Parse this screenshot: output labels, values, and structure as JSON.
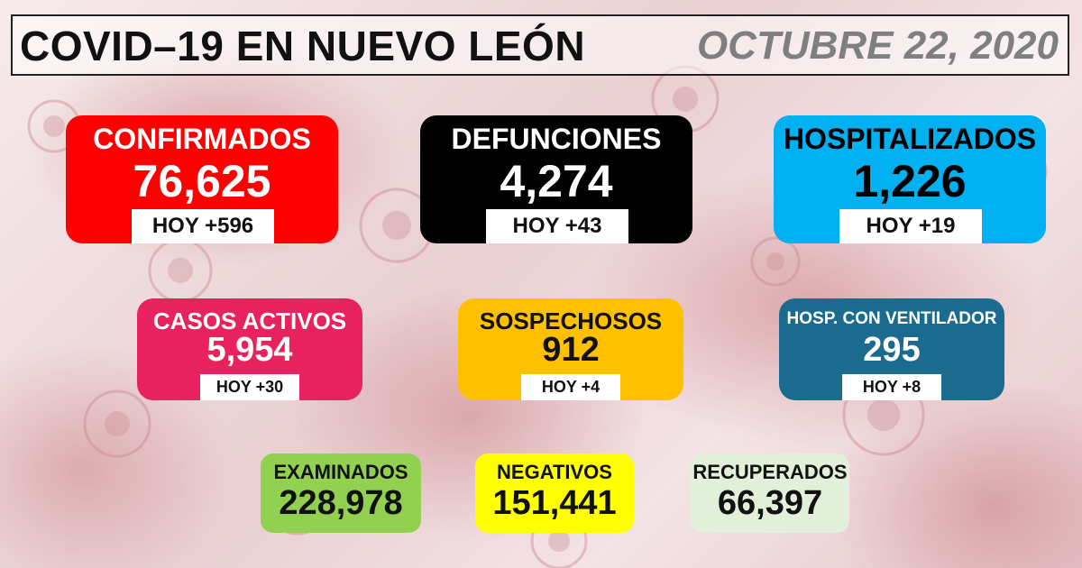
{
  "header": {
    "title": "COVID–19 EN NUEVO LEÓN",
    "date": "OCTUBRE 22, 2020"
  },
  "cards": {
    "confirmados": {
      "label": "CONFIRMADOS",
      "value": "76,625",
      "today": "HOY +596",
      "color": "#ff0000"
    },
    "defunciones": {
      "label": "DEFUNCIONES",
      "value": "4,274",
      "today": "HOY +43",
      "color": "#000000"
    },
    "hospitalizados": {
      "label": "HOSPITALIZADOS",
      "value": "1,226",
      "today": "HOY +19",
      "color": "#00b0f0"
    },
    "casos_activos": {
      "label": "CASOS ACTIVOS",
      "value": "5,954",
      "today": "HOY +30",
      "color": "#e8215f"
    },
    "sospechosos": {
      "label": "SOSPECHOSOS",
      "value": "912",
      "today": "HOY +4",
      "color": "#ffc000"
    },
    "ventilador": {
      "label": "HOSP. CON VENTILADOR",
      "value": "295",
      "today": "HOY +8",
      "color": "#1b6b8f"
    },
    "examinados": {
      "label": "EXAMINADOS",
      "value": "228,978",
      "color": "#92d050"
    },
    "negativos": {
      "label": "NEGATIVOS",
      "value": "151,441",
      "color": "#ffff00"
    },
    "recuperados": {
      "label": "RECUPERADOS",
      "value": "66,397",
      "color": "#e2f0d9"
    }
  }
}
